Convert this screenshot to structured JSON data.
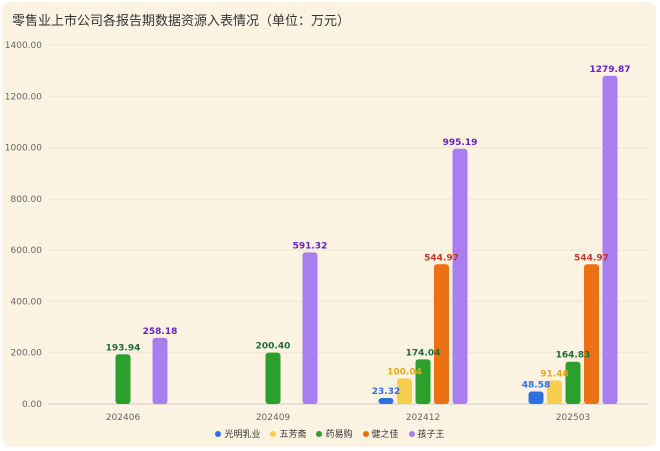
{
  "chart_data": {
    "type": "bar",
    "title": "零售业上市公司各报告期数据资源入表情况（单位：万元）",
    "categories": [
      "202406",
      "202409",
      "202412",
      "202503"
    ],
    "ylim": [
      0,
      1400
    ],
    "yticks": [
      "0.00",
      "200.00",
      "400.00",
      "600.00",
      "800.00",
      "1000.00",
      "1200.00",
      "1400.00"
    ],
    "grid": true,
    "legend_position": "bottom",
    "series": [
      {
        "name": "光明乳业",
        "color": "#2f6fe0",
        "label_color": "#2f6fe0",
        "values": [
          null,
          null,
          23.32,
          48.58
        ],
        "labels": [
          "",
          "",
          "23.32",
          "48.58"
        ]
      },
      {
        "name": "五芳斋",
        "color": "#f5cf4d",
        "label_color": "#e6a817",
        "values": [
          null,
          null,
          100.04,
          91.46
        ],
        "labels": [
          "",
          "",
          "100.04",
          "91.46"
        ]
      },
      {
        "name": "药易购",
        "color": "#2ca02c",
        "label_color": "#1e6b3a",
        "values": [
          193.94,
          200.4,
          174.04,
          164.83
        ],
        "labels": [
          "193.94",
          "200.40",
          "174.04",
          "164.83"
        ]
      },
      {
        "name": "健之佳",
        "color": "#ec7014",
        "label_color": "#c0392b",
        "values": [
          null,
          null,
          544.97,
          544.97
        ],
        "labels": [
          "",
          "",
          "544.97",
          "544.97"
        ]
      },
      {
        "name": "孩子王",
        "color": "#a97ef0",
        "label_color": "#6a1fc2",
        "values": [
          258.18,
          591.32,
          995.19,
          1279.87
        ],
        "labels": [
          "258.18",
          "591.32",
          "995.19",
          "1279.87"
        ]
      }
    ]
  }
}
